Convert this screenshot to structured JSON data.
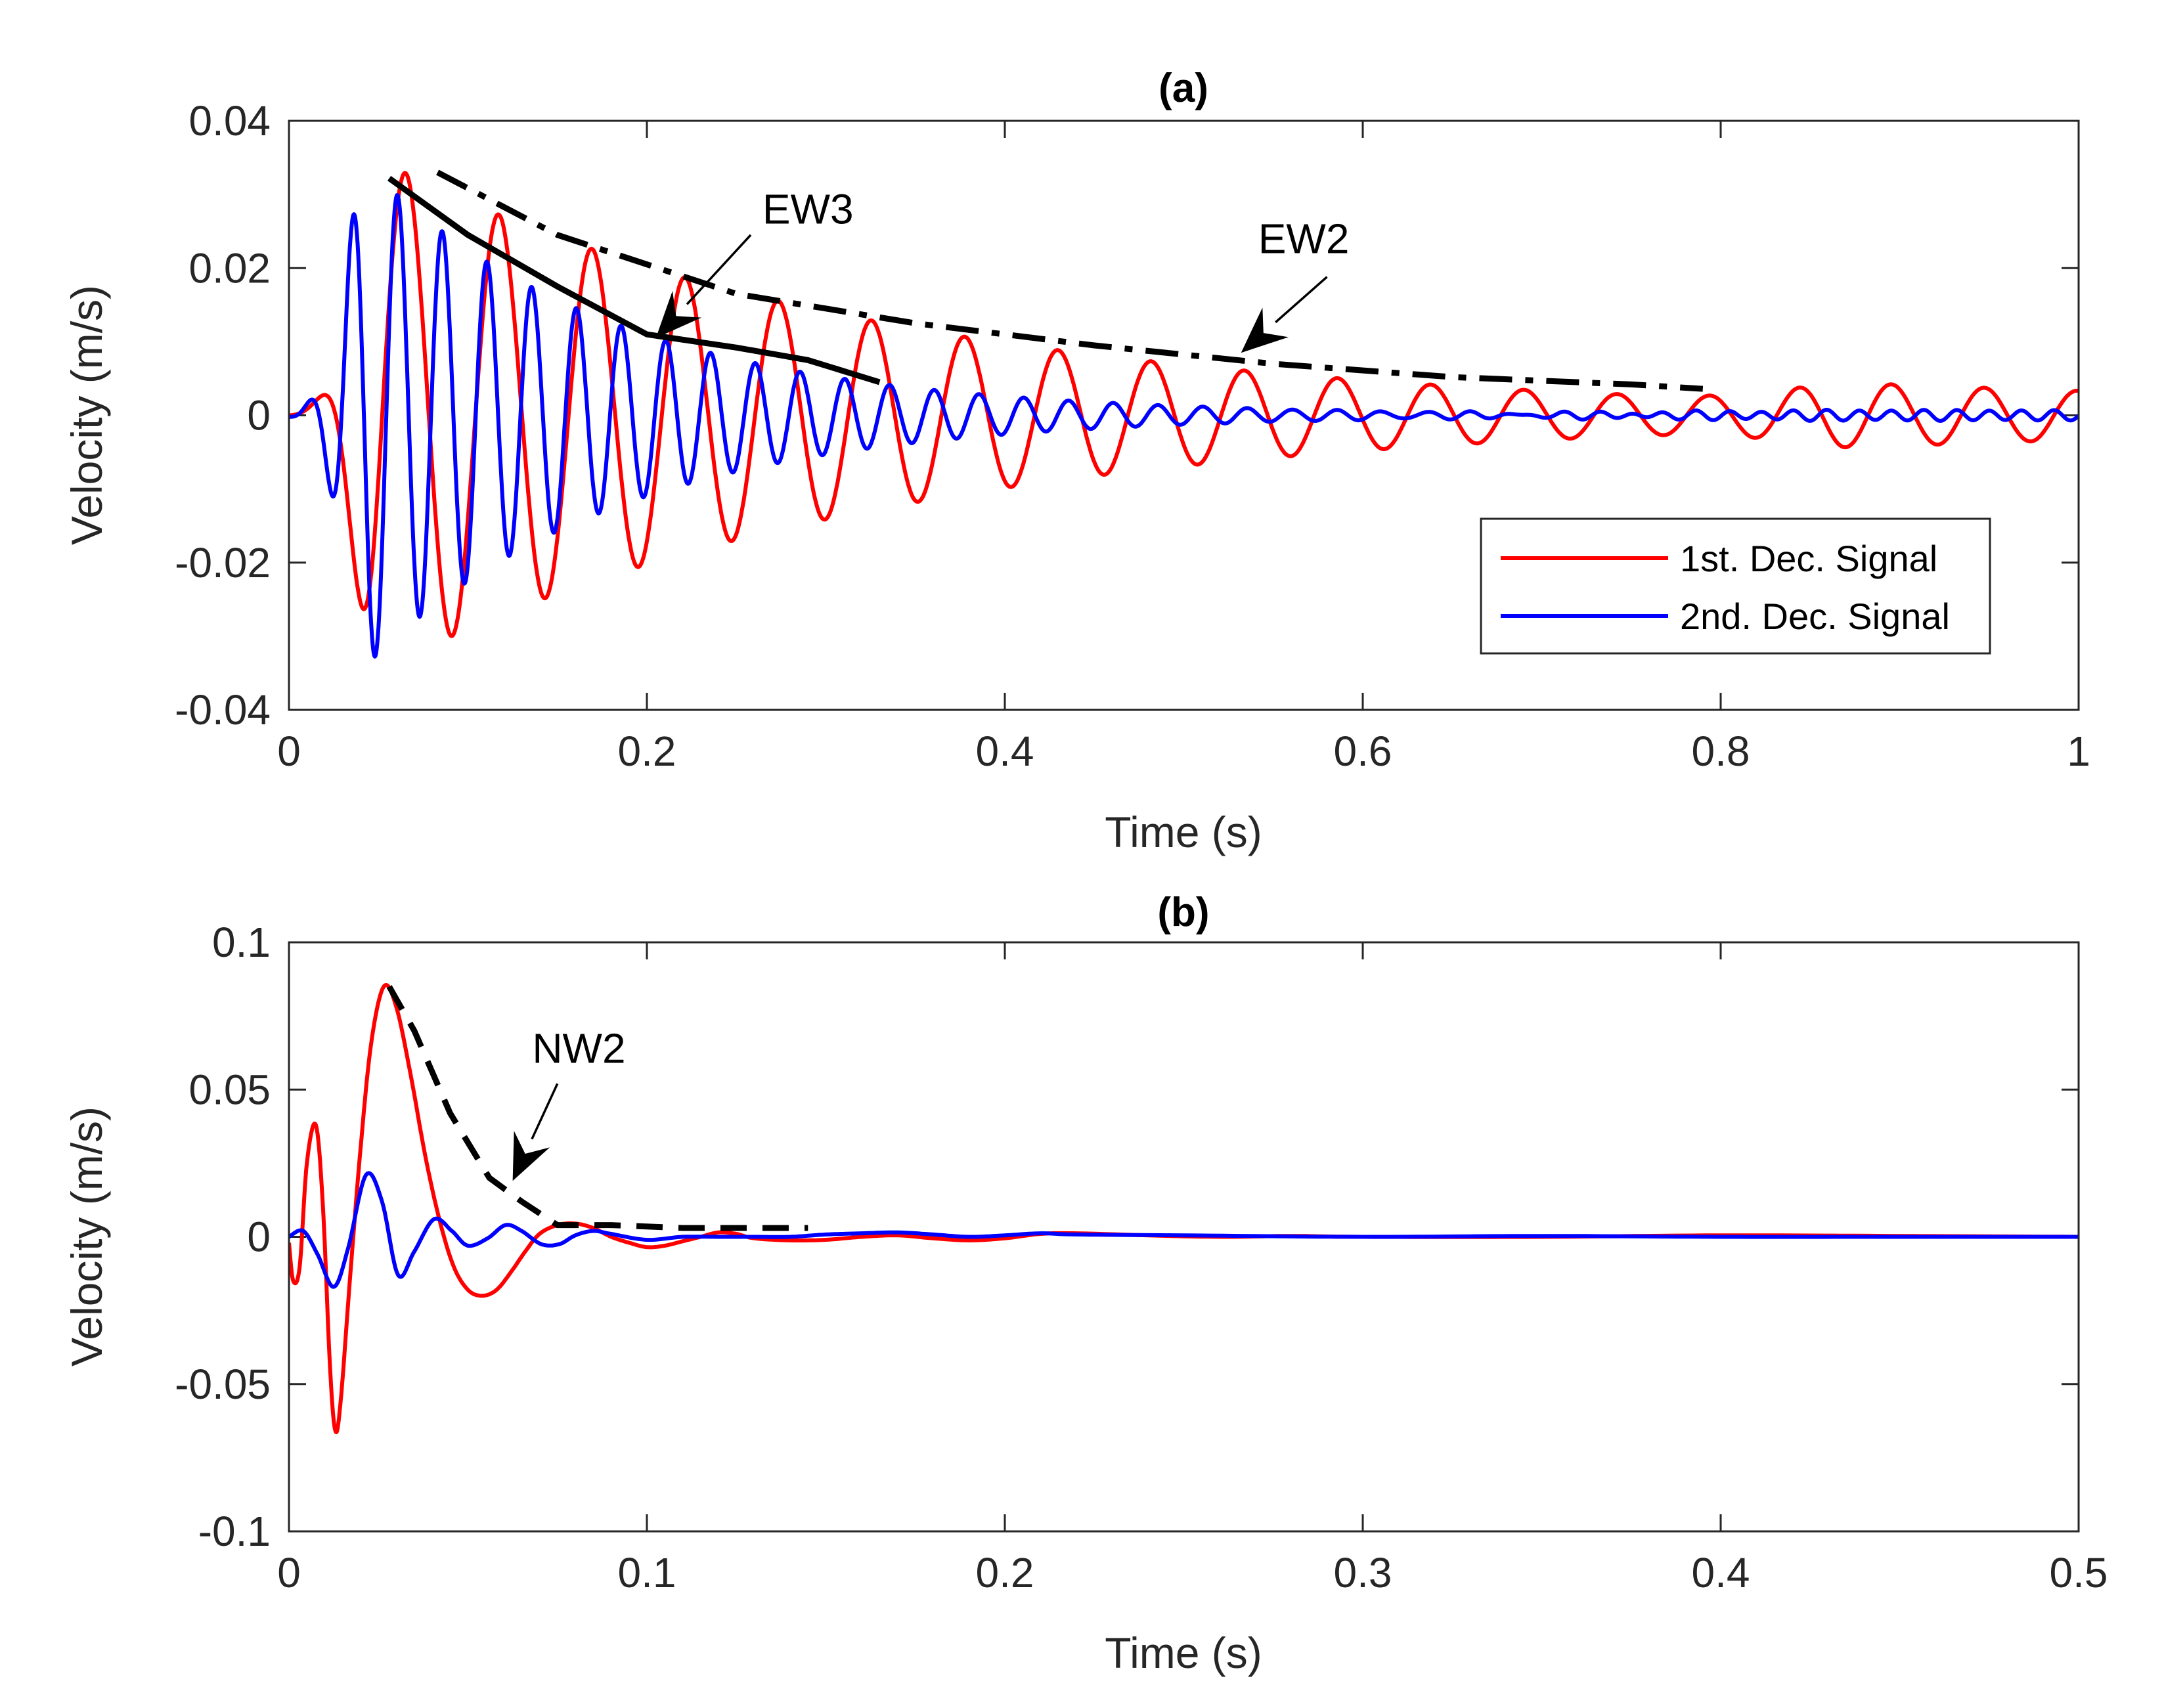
{
  "colors": {
    "series1": "#ff0000",
    "series2": "#0000ff",
    "annotation": "#000000",
    "axis": "#262626"
  },
  "chart_data": [
    {
      "id": "a",
      "type": "line",
      "title": "(a)",
      "xlabel": "Time (s)",
      "ylabel": "Velocity (m/s)",
      "xlim": [
        0,
        1
      ],
      "ylim": [
        -0.04,
        0.04
      ],
      "xticks": [
        0,
        0.2,
        0.4,
        0.6,
        0.8,
        1
      ],
      "xtick_labels": [
        "0",
        "0.2",
        "0.4",
        "0.6",
        "0.8",
        "1"
      ],
      "yticks": [
        -0.04,
        -0.02,
        0,
        0.02,
        0.04
      ],
      "ytick_labels": [
        "-0.04",
        "-0.02",
        "0",
        "0.02",
        "0.04"
      ],
      "legend": {
        "location": "lower-right",
        "entries": [
          "1st. Dec. Signal",
          "2nd. Dec. Signal"
        ]
      },
      "series": [
        {
          "name": "1st. Dec. Signal",
          "color": "#ff0000",
          "model": "damped_sine",
          "x_range": [
            0,
            1
          ],
          "components": [
            {
              "amp": 0.0345,
              "freq": 19.2,
              "phase": 0.0,
              "t_peak": 0.052,
              "t_rise": 0.022,
              "decay": 3.6
            },
            {
              "amp": 0.0028,
              "freq": 19.2,
              "phase": 0.6,
              "t_peak": 0.88,
              "t_rise": 0.06,
              "decay": 1.5
            }
          ]
        },
        {
          "name": "2nd. Dec. Signal",
          "color": "#0000ff",
          "model": "damped_sine",
          "x_range": [
            0,
            1
          ],
          "components": [
            {
              "amp": 0.0335,
              "freq": 40.0,
              "phase": -1.1,
              "t_peak": 0.045,
              "t_rise": 0.02,
              "decay": 7.2
            },
            {
              "amp": 0.0007,
              "freq": 55.0,
              "phase": 0.0,
              "t_peak": 0.9,
              "t_rise": 0.2,
              "decay": 0.5
            }
          ]
        }
      ],
      "envelopes": [
        {
          "name": "EW3",
          "style": "solid",
          "x": [
            0.056,
            0.1,
            0.15,
            0.2,
            0.25,
            0.29,
            0.33
          ],
          "y": [
            0.0322,
            0.0245,
            0.0175,
            0.011,
            0.0092,
            0.0075,
            0.0045
          ]
        },
        {
          "name": "EW2",
          "style": "dashdot",
          "x": [
            0.083,
            0.15,
            0.25,
            0.35,
            0.45,
            0.55,
            0.65,
            0.75,
            0.79
          ],
          "y": [
            0.033,
            0.0245,
            0.0165,
            0.0125,
            0.0095,
            0.007,
            0.0052,
            0.0042,
            0.0036
          ]
        }
      ],
      "annotations": [
        {
          "text": "EW3",
          "text_at": [
            0.29,
            0.028
          ],
          "tail": [
            0.258,
            0.0245
          ],
          "head": [
            0.205,
            0.0105
          ]
        },
        {
          "text": "EW2",
          "text_at": [
            0.567,
            0.024
          ],
          "tail": [
            0.58,
            0.0188
          ],
          "head": [
            0.532,
            0.0085
          ]
        }
      ]
    },
    {
      "id": "b",
      "type": "line",
      "title": "(b)",
      "xlabel": "Time (s)",
      "ylabel": "Velocity (m/s)",
      "xlim": [
        0,
        0.5
      ],
      "ylim": [
        -0.1,
        0.1
      ],
      "xticks": [
        0,
        0.1,
        0.2,
        0.3,
        0.4,
        0.5
      ],
      "xtick_labels": [
        "0",
        "0.1",
        "0.2",
        "0.3",
        "0.4",
        "0.5"
      ],
      "yticks": [
        -0.1,
        -0.05,
        0,
        0.05,
        0.1
      ],
      "ytick_labels": [
        "-0.1",
        "-0.05",
        "0",
        "0.05",
        "0.1"
      ],
      "series": [
        {
          "name": "1st. Dec. Signal",
          "color": "#ff0000",
          "x": [
            0,
            0.0012,
            0.003,
            0.005,
            0.0075,
            0.0095,
            0.0115,
            0.013,
            0.0145,
            0.017,
            0.02,
            0.023,
            0.0265,
            0.03,
            0.034,
            0.038,
            0.042,
            0.046,
            0.05,
            0.054,
            0.058,
            0.062,
            0.066,
            0.07,
            0.075,
            0.08,
            0.085,
            0.09,
            0.095,
            0.1,
            0.105,
            0.11,
            0.115,
            0.12,
            0.125,
            0.13,
            0.14,
            0.15,
            0.16,
            0.17,
            0.18,
            0.19,
            0.2,
            0.21,
            0.22,
            0.24,
            0.26,
            0.28,
            0.3,
            0.35,
            0.4,
            0.45,
            0.5
          ],
          "y": [
            -0.002,
            -0.015,
            -0.01,
            0.025,
            0.038,
            0.01,
            -0.045,
            -0.066,
            -0.055,
            -0.015,
            0.03,
            0.066,
            0.085,
            0.078,
            0.055,
            0.028,
            0.006,
            -0.01,
            -0.018,
            -0.02,
            -0.018,
            -0.012,
            -0.005,
            0.001,
            0.004,
            0.0045,
            0.003,
            0.0,
            -0.002,
            -0.0035,
            -0.003,
            -0.0015,
            0.0,
            0.0015,
            0.001,
            -0.0005,
            -0.0012,
            -0.001,
            0.0,
            0.0005,
            -0.0005,
            -0.0012,
            -0.0005,
            0.001,
            0.0012,
            0.0005,
            0.0,
            0.0003,
            0.0,
            0.0,
            0.0005,
            0.0003,
            0.0
          ]
        },
        {
          "name": "2nd. Dec. Signal",
          "color": "#0000ff",
          "x": [
            0,
            0.004,
            0.008,
            0.0125,
            0.0165,
            0.0215,
            0.026,
            0.0305,
            0.035,
            0.0405,
            0.0455,
            0.05,
            0.0555,
            0.0605,
            0.065,
            0.0705,
            0.0755,
            0.08,
            0.085,
            0.09,
            0.1,
            0.11,
            0.12,
            0.13,
            0.14,
            0.15,
            0.16,
            0.17,
            0.18,
            0.19,
            0.2,
            0.21,
            0.22,
            0.25,
            0.3,
            0.35,
            0.4,
            0.45,
            0.5
          ],
          "y": [
            0.0,
            0.002,
            -0.006,
            -0.017,
            -0.004,
            0.021,
            0.012,
            -0.013,
            -0.005,
            0.006,
            0.002,
            -0.003,
            -0.0005,
            0.004,
            0.002,
            -0.0025,
            -0.0025,
            0.0005,
            0.002,
            0.001,
            -0.001,
            0.0,
            0.0,
            0.0,
            0.0,
            0.0008,
            0.0012,
            0.0015,
            0.0008,
            0.0,
            0.0005,
            0.0012,
            0.0008,
            0.0005,
            0.0,
            0.0003,
            0.0,
            0.0,
            0.0
          ]
        }
      ],
      "envelopes": [
        {
          "name": "NW2",
          "style": "dashed",
          "x": [
            0.028,
            0.035,
            0.045,
            0.056,
            0.065,
            0.075,
            0.09,
            0.11,
            0.13,
            0.145
          ],
          "y": [
            0.085,
            0.07,
            0.042,
            0.02,
            0.012,
            0.004,
            0.004,
            0.003,
            0.003,
            0.003
          ]
        }
      ],
      "annotations": [
        {
          "text": "NW2",
          "text_at": [
            0.081,
            0.064
          ],
          "tail": [
            0.075,
            0.052
          ],
          "head": [
            0.0625,
            0.019
          ]
        }
      ]
    }
  ]
}
